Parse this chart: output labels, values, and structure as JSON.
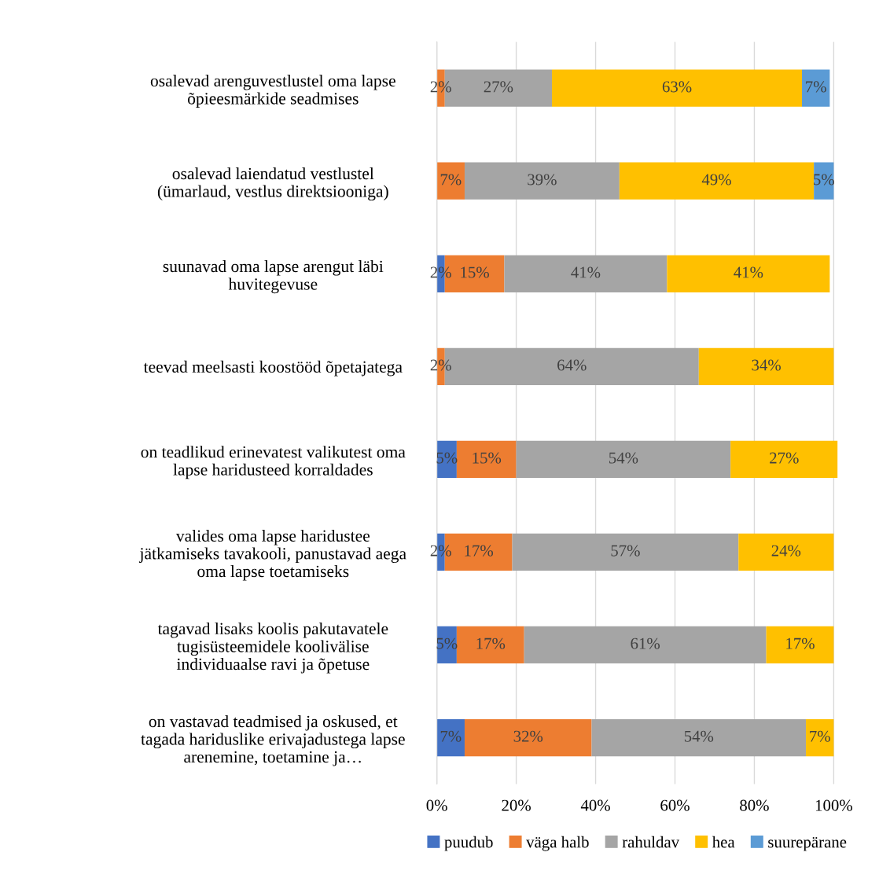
{
  "chart_data": {
    "type": "bar",
    "orientation": "horizontal",
    "stacked": true,
    "categories": [
      "osalevad arenguvestlustel oma lapse õpieesmärkide seadmises",
      "osalevad laiendatud vestlustel (ümarlaud, vestlus direktsiooniga)",
      "suunavad oma lapse arengut läbi huvitegevuse",
      "teevad meelsasti koostööd õpetajatega",
      "on teadlikud erinevatest valikutest oma lapse haridusteed korraldades",
      "valides oma lapse haridustee jätkamiseks tavakooli, panustavad aega oma lapse toetamiseks",
      "tagavad lisaks koolis pakutavatele tugisüsteemidele koolivälise individuaalse ravi ja õpetuse",
      "on vastavad teadmised ja oskused, et tagada hariduslike erivajadustega lapse arenemine, toetamine ja…"
    ],
    "series": [
      {
        "name": "puudub",
        "color": "#4472c4",
        "values": [
          0,
          0,
          2,
          0,
          5,
          2,
          5,
          7
        ],
        "value_labels": [
          null,
          null,
          "2%",
          null,
          "5%",
          "2%",
          "5%",
          "7%"
        ]
      },
      {
        "name": "väga halb",
        "color": "#ed7d31",
        "values": [
          2,
          7,
          15,
          2,
          15,
          17,
          17,
          32
        ],
        "value_labels": [
          "2%",
          "7%",
          "15%",
          "2%",
          "15%",
          "17%",
          "17%",
          "32%"
        ]
      },
      {
        "name": "rahuldav",
        "color": "#a5a5a5",
        "values": [
          27,
          39,
          41,
          64,
          54,
          57,
          61,
          54
        ],
        "value_labels": [
          "27%",
          "39%",
          "41%",
          "64%",
          "54%",
          "57%",
          "61%",
          "54%"
        ]
      },
      {
        "name": "hea",
        "color": "#ffc000",
        "values": [
          63,
          49,
          41,
          34,
          27,
          24,
          17,
          7
        ],
        "value_labels": [
          "63%",
          "49%",
          "41%",
          "34%",
          "27%",
          "24%",
          "17%",
          "7%"
        ]
      },
      {
        "name": "suurepärane",
        "color": "#5b9bd5",
        "values": [
          7,
          5,
          0,
          0,
          0,
          0,
          0,
          0
        ],
        "value_labels": [
          "7%",
          "5%",
          null,
          null,
          null,
          null,
          null,
          null
        ]
      }
    ],
    "xlim": [
      0,
      101
    ],
    "xticks": [
      {
        "value": 0,
        "label": "0%"
      },
      {
        "value": 20,
        "label": "20%"
      },
      {
        "value": 40,
        "label": "40%"
      },
      {
        "value": 60,
        "label": "60%"
      },
      {
        "value": 80,
        "label": "80%"
      },
      {
        "value": 100,
        "label": "100%"
      }
    ],
    "grid": "x",
    "legend": "bottom"
  }
}
